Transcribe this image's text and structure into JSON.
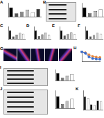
{
  "image_panels": [
    {
      "label": "G"
    }
  ],
  "chart_data": [
    {
      "title": "A",
      "type": "bar",
      "categories": [
        null,
        null,
        null,
        null,
        null,
        null
      ],
      "values": [
        1,
        0.35,
        0.55,
        0.75,
        0.45,
        0.85
      ],
      "colors": [
        "#000000",
        "#555555",
        "#888888",
        "#bbbbbb",
        "#ffffff",
        "#333333"
      ],
      "ylim": [
        0,
        1.5
      ],
      "yticks": [
        0,
        0.5,
        1,
        1.5
      ],
      "grid": false,
      "tick_labels": false
    },
    {
      "title": "B",
      "type": "bar",
      "categories": [
        null,
        null,
        null,
        null
      ],
      "values": [
        1,
        0.4,
        0.6,
        0.8
      ],
      "colors": [
        "#000000",
        "#777777",
        "#bbbbbb",
        "#ffffff"
      ],
      "ylim": [
        0,
        1.5
      ],
      "yticks": [
        0,
        0.5,
        1,
        1.5
      ],
      "grid": false,
      "tick_labels": false
    },
    {
      "title": "C",
      "type": "bar",
      "categories": [
        null,
        null,
        null,
        null,
        null
      ],
      "values": [
        1,
        0.3,
        0.5,
        0.7,
        0.6
      ],
      "colors": [
        "#000000",
        "#555555",
        "#999999",
        "#cccccc",
        "#ffffff"
      ],
      "ylim": [
        0,
        1.5
      ],
      "yticks": [
        0,
        0.5,
        1,
        1.5
      ],
      "grid": false,
      "tick_labels": false
    },
    {
      "title": "D",
      "type": "bar",
      "categories": [
        null,
        null,
        null,
        null,
        null
      ],
      "values": [
        1,
        0.35,
        0.55,
        0.75,
        0.5
      ],
      "colors": [
        "#000000",
        "#555555",
        "#999999",
        "#cccccc",
        "#ffffff"
      ],
      "ylim": [
        0,
        1.5
      ],
      "yticks": [
        0,
        0.5,
        1,
        1.5
      ],
      "grid": false,
      "tick_labels": false
    },
    {
      "title": "E",
      "type": "bar",
      "categories": [
        null,
        null,
        null,
        null,
        null
      ],
      "values": [
        1,
        0.4,
        0.6,
        0.8,
        0.55
      ],
      "colors": [
        "#000000",
        "#555555",
        "#999999",
        "#cccccc",
        "#ffffff"
      ],
      "ylim": [
        0,
        1.5
      ],
      "yticks": [
        0,
        0.5,
        1,
        1.5
      ],
      "grid": false,
      "tick_labels": false
    },
    {
      "title": "F",
      "type": "bar",
      "categories": [
        null,
        null,
        null,
        null,
        null
      ],
      "values": [
        1,
        0.3,
        0.45,
        0.7,
        0.6
      ],
      "colors": [
        "#000000",
        "#555555",
        "#999999",
        "#cccccc",
        "#ffffff"
      ],
      "ylim": [
        0,
        1.5
      ],
      "yticks": [
        0,
        0.5,
        1,
        1.5
      ],
      "grid": false,
      "tick_labels": false
    },
    {
      "title": "H",
      "type": "line",
      "categories": [
        null,
        null,
        null,
        null,
        null,
        null
      ],
      "series": [
        {
          "color": "#3b6fd1",
          "values": [
            90,
            75,
            40,
            25,
            20,
            18
          ]
        },
        {
          "color": "#e8873a",
          "values": [
            90,
            80,
            60,
            45,
            38,
            35
          ]
        }
      ],
      "ylim": [
        0,
        100
      ],
      "yticks": [
        0,
        50,
        100
      ],
      "grid": false,
      "tick_labels": false,
      "marker": "circle"
    },
    {
      "title": "I",
      "type": "bar",
      "categories": [
        null,
        null,
        null,
        null
      ],
      "values": [
        1,
        0.4,
        0.65,
        0.85
      ],
      "colors": [
        "#000000",
        "#777777",
        "#bbbbbb",
        "#ffffff"
      ],
      "ylim": [
        0,
        1.5
      ],
      "yticks": [
        0,
        0.5,
        1,
        1.5
      ],
      "grid": false,
      "tick_labels": false
    },
    {
      "title": "J",
      "type": "bar",
      "categories": [
        null,
        null,
        null,
        null
      ],
      "values": [
        1,
        0.35,
        0.6,
        0.8
      ],
      "colors": [
        "#000000",
        "#777777",
        "#bbbbbb",
        "#ffffff"
      ],
      "ylim": [
        0,
        1.5
      ],
      "yticks": [
        0,
        0.5,
        1,
        1.5
      ],
      "grid": false,
      "tick_labels": false
    },
    {
      "title": "K",
      "type": "bar",
      "categories": [
        null,
        null,
        null,
        null,
        null,
        null
      ],
      "values": [
        1,
        0.9,
        0.4,
        0.35,
        0.7,
        0.65
      ],
      "colors": [
        "#000000",
        "#ffffff",
        "#000000",
        "#ffffff",
        "#000000",
        "#ffffff"
      ],
      "ylim": [
        0,
        1.5
      ],
      "yticks": [
        0,
        0.5,
        1,
        1.5
      ],
      "grid": false,
      "tick_labels": false
    }
  ]
}
